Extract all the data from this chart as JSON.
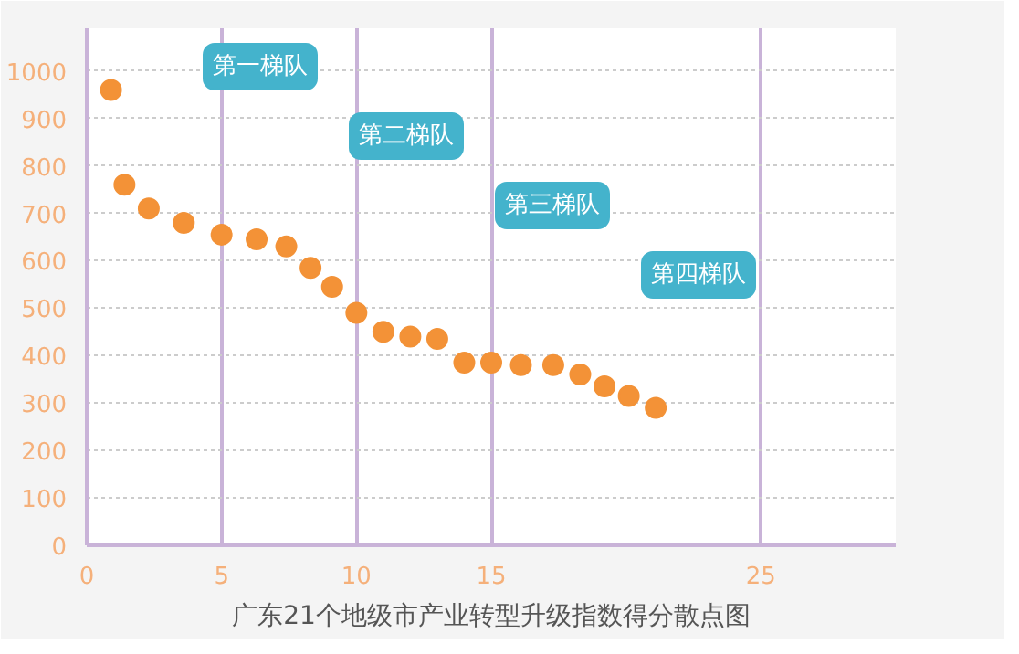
{
  "chart_data": {
    "type": "scatter",
    "title": "广东21个地级市产业转型升级指数得分散点图",
    "x": [
      0.9,
      1.4,
      2.3,
      3.6,
      5.0,
      6.3,
      7.4,
      8.3,
      9.1,
      10.0,
      11.0,
      12.0,
      13.0,
      14.0,
      15.0,
      16.1,
      17.3,
      18.3,
      19.2,
      20.1,
      21.1
    ],
    "series": [
      {
        "color": "#f39237",
        "values": [
          960,
          760,
          710,
          680,
          655,
          645,
          630,
          585,
          545,
          490,
          450,
          440,
          435,
          385,
          385,
          380,
          380,
          360,
          335,
          315,
          290
        ]
      }
    ],
    "xlim": [
      0,
      30
    ],
    "ylim": [
      0,
      1090
    ],
    "xticks": [
      0,
      5,
      10,
      15,
      25
    ],
    "yticks": [
      0,
      100,
      200,
      300,
      400,
      500,
      600,
      700,
      800,
      900,
      1000
    ],
    "grid": true,
    "marker": "circle",
    "annotations": [
      "第一梯队",
      "第二梯队",
      "第三梯队",
      "第四梯队"
    ]
  }
}
